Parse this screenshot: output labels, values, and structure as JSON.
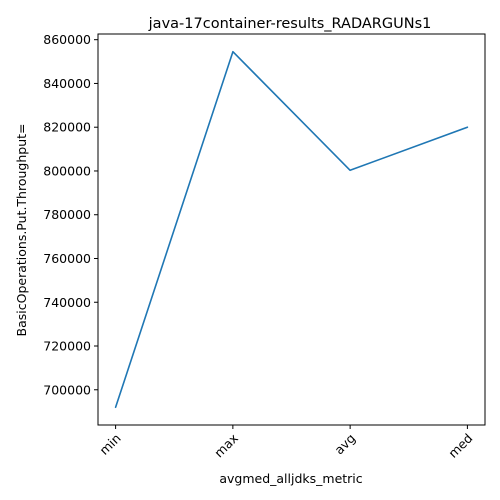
{
  "chart_data": {
    "type": "line",
    "title": "java-17container-results_RADARGUNs1",
    "xlabel": "avgmed_alljdks_metric",
    "ylabel": "BasicOperations.Put.Throughput=",
    "categories": [
      "min",
      "max",
      "avg",
      "med"
    ],
    "series": [
      {
        "values": [
          692000,
          854500,
          800300,
          820000
        ],
        "color": "#1f77b4"
      }
    ],
    "ylim": [
      683900,
      862600
    ],
    "yticks": [
      700000,
      720000,
      740000,
      760000,
      780000,
      800000,
      820000,
      840000,
      860000
    ],
    "ytick_labels": [
      "700000",
      "720000",
      "740000",
      "760000",
      "780000",
      "800000",
      "820000",
      "840000",
      "860000"
    ],
    "xtick_rotation": 45,
    "grid": false,
    "legend": "none"
  }
}
